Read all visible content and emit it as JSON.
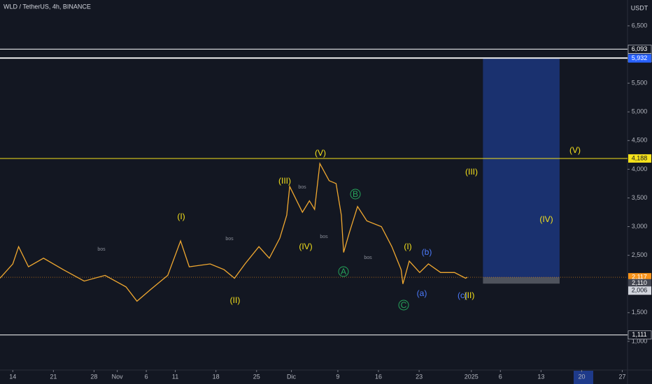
{
  "chart_data": {
    "type": "line",
    "title": "WLD / TetherUS, 4h, BINANCE",
    "currency": "USDT",
    "color": "#f0a830",
    "x": [
      -2.2,
      0,
      1,
      2.7,
      5.3,
      8.7,
      12.3,
      15.9,
      19.5,
      21.4,
      23.7,
      26.7,
      28.9,
      30.4,
      34,
      36.4,
      38.2,
      40,
      42.4,
      44.2,
      46,
      47.2,
      47.7,
      49.9,
      51.1,
      52,
      52.9,
      54.5,
      55.7,
      56.6,
      57,
      58,
      59.4,
      61,
      63.5,
      65.3,
      66.9,
      67.2,
      68.3,
      70.1,
      71.6,
      73.7,
      76.1,
      78,
      78.3
    ],
    "values": [
      2100,
      2350,
      2650,
      2300,
      2450,
      2250,
      2050,
      2150,
      1950,
      1700,
      1900,
      2150,
      2750,
      2300,
      2350,
      2250,
      2100,
      2350,
      2650,
      2450,
      2800,
      3200,
      3700,
      3250,
      3450,
      3300,
      4100,
      3800,
      3750,
      3200,
      2550,
      2900,
      3350,
      3100,
      3000,
      2650,
      2250,
      2000,
      2400,
      2200,
      2350,
      2200,
      2200,
      2100,
      2117
    ],
    "xlim": [
      -2.2,
      105.9
    ],
    "xticks": [
      {
        "value": 0,
        "label": "14"
      },
      {
        "value": 7,
        "label": "21"
      },
      {
        "value": 14,
        "label": "28"
      },
      {
        "value": 18,
        "label": "Nov"
      },
      {
        "value": 23,
        "label": "6"
      },
      {
        "value": 28,
        "label": "11"
      },
      {
        "value": 35,
        "label": "18"
      },
      {
        "value": 42,
        "label": "25"
      },
      {
        "value": 48,
        "label": "Dic"
      },
      {
        "value": 56,
        "label": "9"
      },
      {
        "value": 63,
        "label": "16"
      },
      {
        "value": 70,
        "label": "23"
      },
      {
        "value": 79,
        "label": "2025"
      },
      {
        "value": 84,
        "label": "6"
      },
      {
        "value": 91,
        "label": "13"
      },
      {
        "value": 98,
        "label": "20"
      },
      {
        "value": 105,
        "label": "27"
      }
    ],
    "ylim": [
      500,
      6950
    ],
    "yticks": [
      {
        "value": 6500,
        "label": "6,500"
      },
      {
        "value": 5500,
        "label": "5,500"
      },
      {
        "value": 5000,
        "label": "5,000"
      },
      {
        "value": 4500,
        "label": "4,500"
      },
      {
        "value": 4000,
        "label": "4,000"
      },
      {
        "value": 3500,
        "label": "3,500"
      },
      {
        "value": 3000,
        "label": "3,000"
      },
      {
        "value": 2500,
        "label": "2,500"
      },
      {
        "value": 1500,
        "label": "1,500"
      },
      {
        "value": 1000,
        "label": "1,000"
      }
    ],
    "levels": [
      {
        "value": 6093,
        "label": "6,093",
        "color": "#ffffff",
        "badge": "#131722"
      },
      {
        "value": 5943,
        "label": "5,943",
        "color": "#ffffff",
        "badge": "#131722"
      },
      {
        "value": 5932,
        "label": "5,932",
        "color": "#ffffff",
        "badge": "#2962ff"
      },
      {
        "value": 4188,
        "label": "4,188",
        "color": "#f5e11b",
        "badge": "#f5e11b"
      },
      {
        "value": 1111,
        "label": "1,111",
        "color": "#ffffff",
        "badge": "#131722"
      }
    ],
    "last_price": {
      "value": 2117,
      "label": "2,117",
      "countdown": "01:50:22",
      "color": "#f7931a"
    },
    "badges": [
      {
        "value": 2110,
        "label": "2,110",
        "color": "#434651"
      },
      {
        "value": 2006,
        "label": "2,006",
        "color": "#d1d4dc"
      }
    ],
    "position": {
      "x": [
        81,
        94.2
      ],
      "target": 5932,
      "entry": 2117,
      "stop": 2006
    },
    "annotations": [
      {
        "text": "(V)",
        "color": "#f5e11b"
      },
      {
        "text": "(III)",
        "color": "#f5e11b"
      },
      {
        "text": "(I)",
        "color": "#f5e11b"
      },
      {
        "text": "(IV)",
        "color": "#f5e11b"
      },
      {
        "text": "(II)",
        "color": "#f5e11b"
      },
      {
        "text": "B",
        "color": "#26a65b"
      },
      {
        "text": "A",
        "color": "#26a65b"
      },
      {
        "text": "C",
        "color": "#26a65b"
      },
      {
        "text": "(I)",
        "color": "#f5e11b"
      },
      {
        "text": "(b)",
        "color": "#4d7cff"
      },
      {
        "text": "(a)",
        "color": "#4d7cff"
      },
      {
        "text": "(c)",
        "color": "#4d7cff"
      },
      {
        "text": "(II)",
        "color": "#f5e11b"
      },
      {
        "text": "(III)",
        "color": "#f5e11b"
      },
      {
        "text": "(V)",
        "color": "#f5e11b"
      },
      {
        "text": "(IV)",
        "color": "#f5e11b"
      }
    ],
    "small_labels": [
      "bos",
      "bos",
      "bos",
      "bos",
      "bos"
    ]
  }
}
